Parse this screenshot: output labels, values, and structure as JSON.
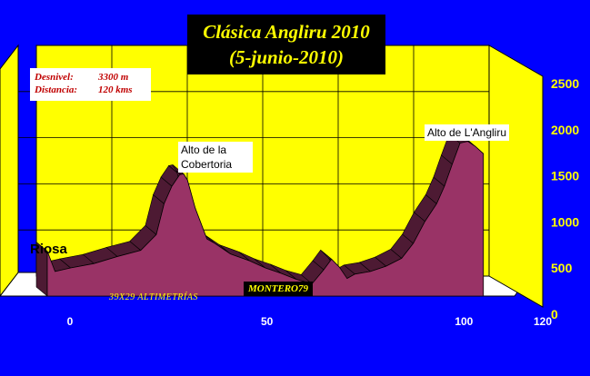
{
  "title": {
    "line1": "Clásica Angliru 2010",
    "line2": "(5-junio-2010)"
  },
  "info": {
    "desnivel_label": "Desnivel:",
    "desnivel_value": "3300 m",
    "distancia_label": "Distancia:",
    "distancia_value": "120 kms"
  },
  "annotations": {
    "start": "Riosa",
    "peak1": "Alto de la\nCobertoria",
    "peak2": "Alto de L'Angliru",
    "credit": "39X29 ALTIMETRÍAS",
    "author": "MONTERO79"
  },
  "colors": {
    "background": "#0000ff",
    "plot_wall": "#ffff00",
    "floor": "#ffffff",
    "profile_front": "#993366",
    "profile_top": "#4d1a33",
    "axis_text": "#ffffff",
    "y_tick_text": "#ffff00"
  },
  "chart_data": {
    "type": "area",
    "title": "Clásica Angliru 2010",
    "subtitle": "(5-junio-2010)",
    "xlim": [
      0,
      120
    ],
    "ylim": [
      0,
      2500
    ],
    "x_ticks": [
      "0",
      "50",
      "100",
      "120"
    ],
    "y_ticks": [
      "0",
      "500",
      "1000",
      "1500",
      "2000",
      "2500"
    ],
    "grid": true,
    "series": [
      {
        "x": [
          0,
          2,
          6,
          12,
          18,
          24,
          28,
          30,
          32,
          34,
          35,
          36,
          38,
          41,
          43,
          47,
          52,
          56,
          60,
          64,
          68,
          71,
          73,
          75,
          77,
          79,
          83,
          87,
          91,
          94,
          97,
          100,
          102,
          104,
          106,
          108,
          110,
          112
        ],
        "y": [
          510,
          280,
          320,
          370,
          450,
          520,
          700,
          1050,
          1250,
          1380,
          1390,
          1320,
          1000,
          650,
          600,
          480,
          400,
          320,
          260,
          190,
          140,
          300,
          420,
          330,
          200,
          250,
          280,
          340,
          430,
          600,
          850,
          1050,
          1250,
          1500,
          1740,
          1760,
          1700,
          1620
        ]
      }
    ]
  }
}
